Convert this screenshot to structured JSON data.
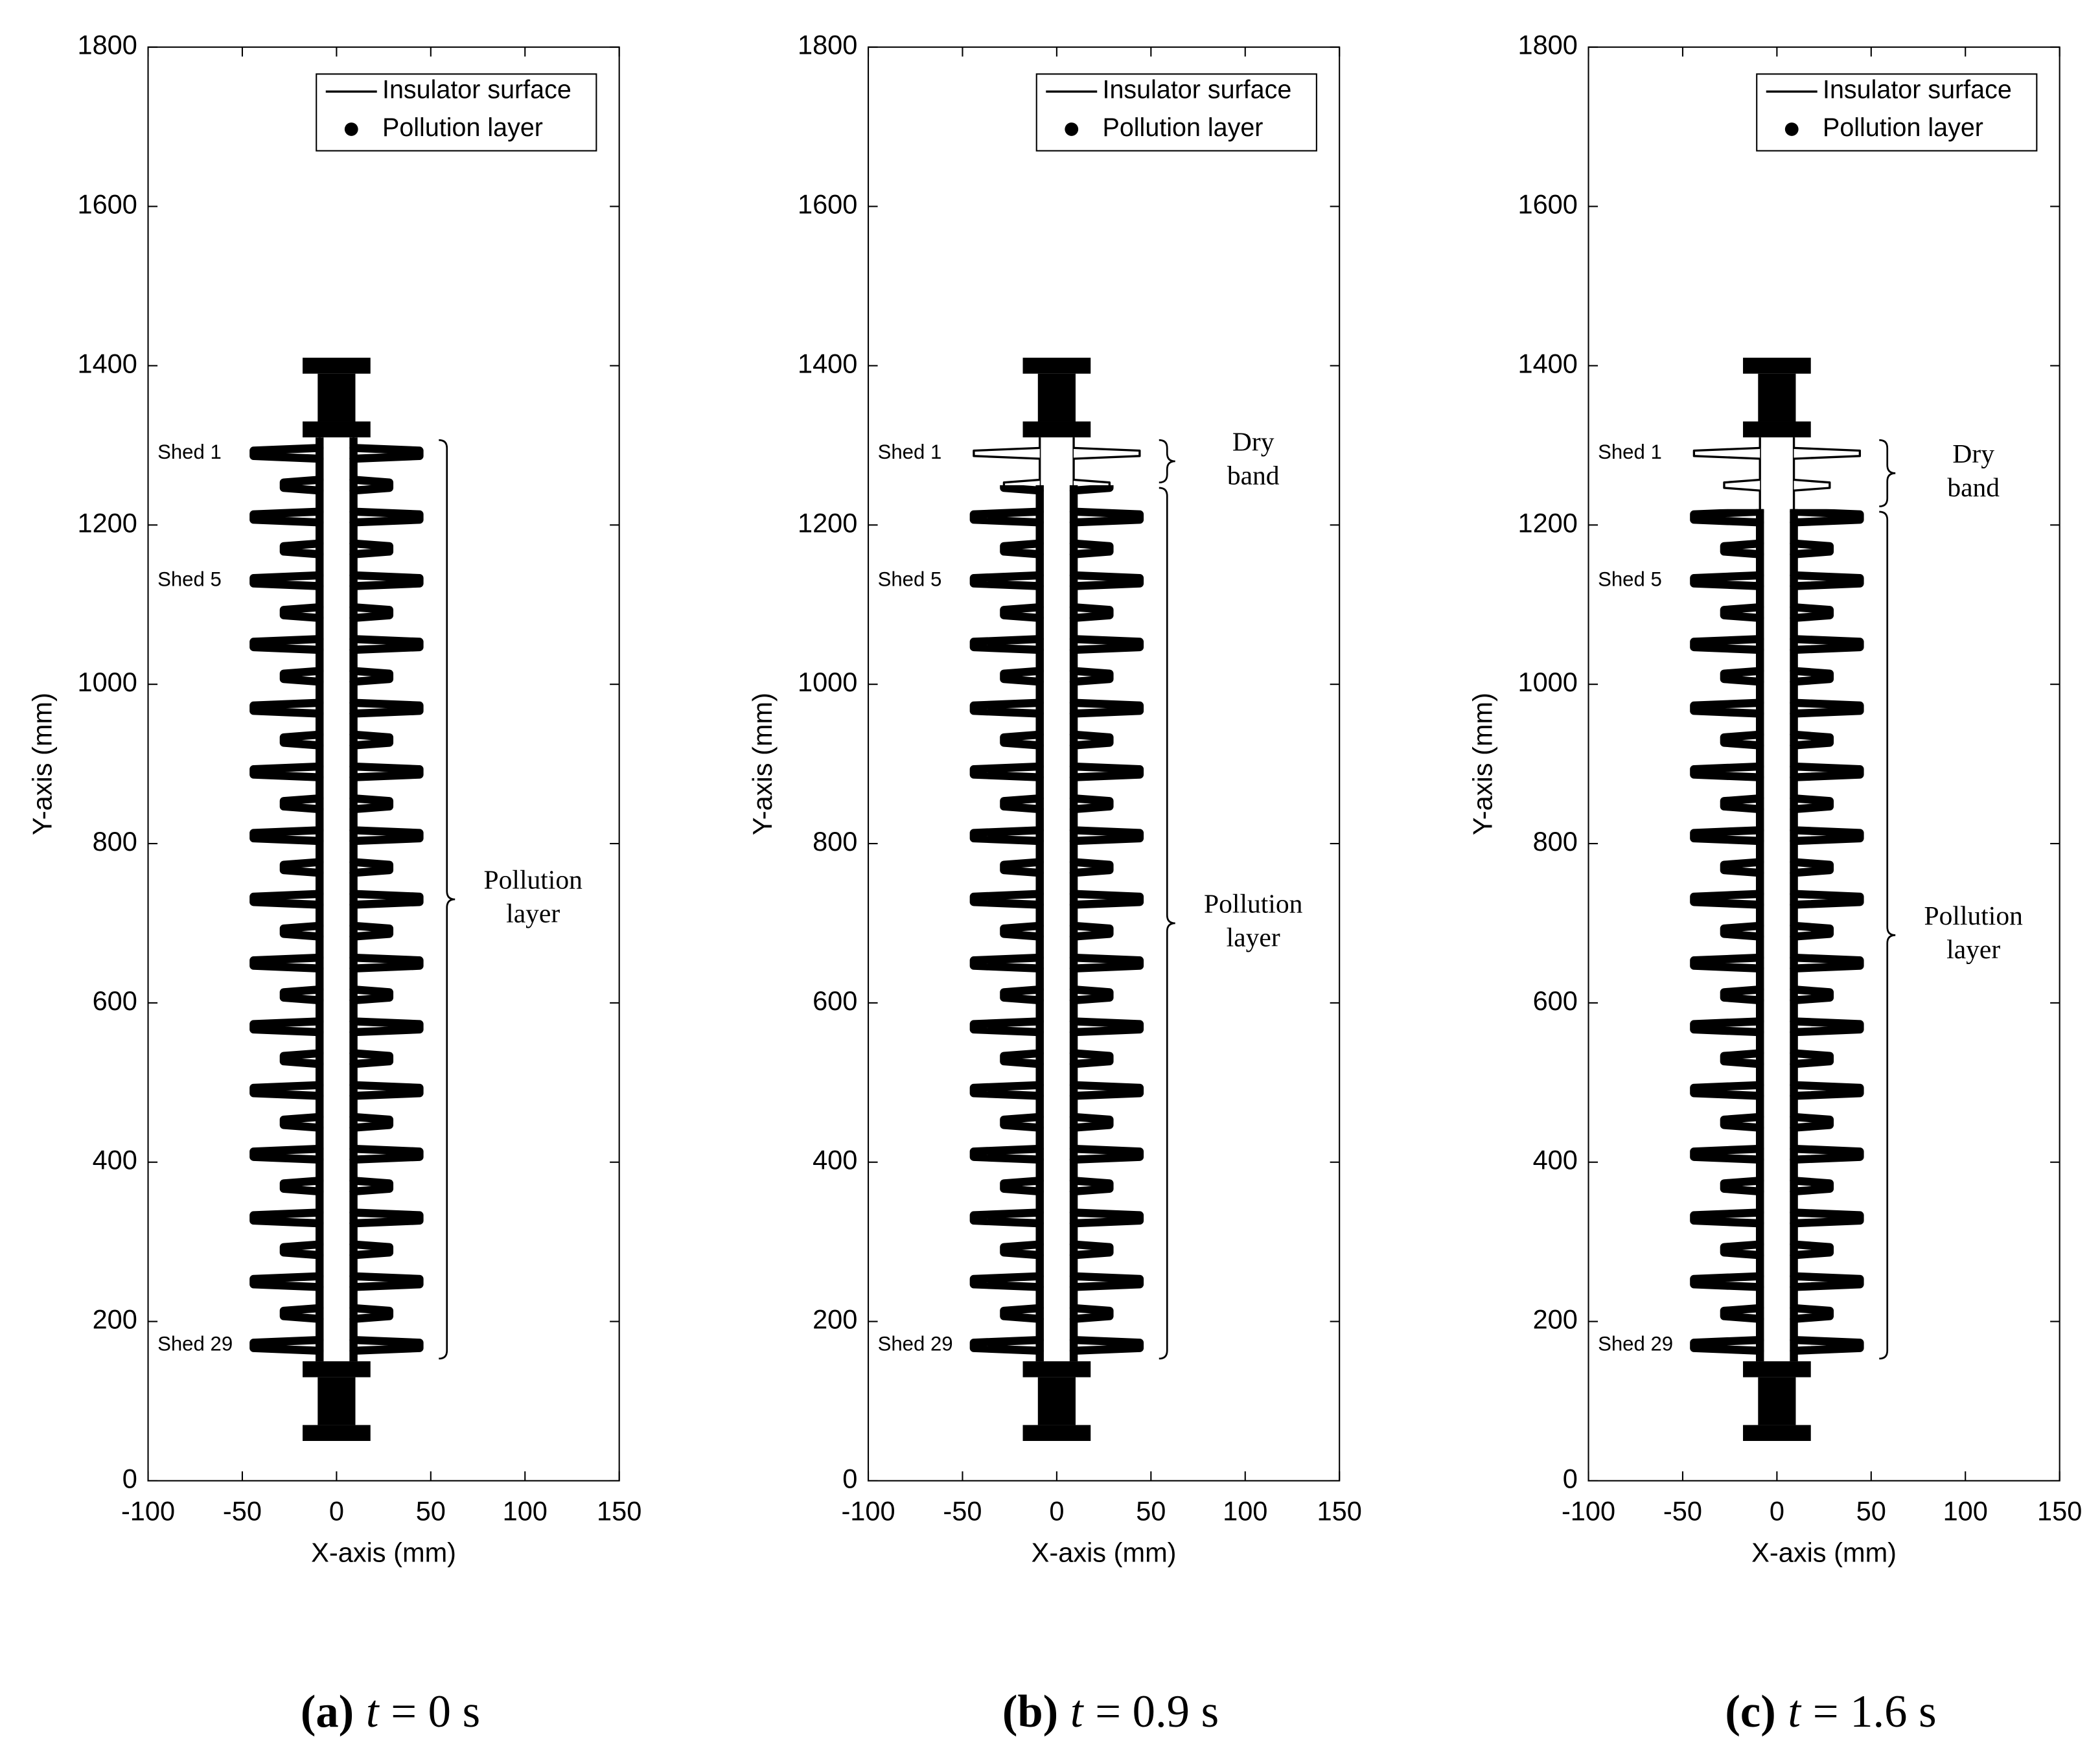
{
  "chart_data": [
    {
      "type": "profile",
      "xlabel": "X-axis (mm)",
      "ylabel": "Y-axis (mm)",
      "xlim": [
        -100,
        150
      ],
      "ylim": [
        0,
        1800
      ],
      "xticks": [
        -100,
        -50,
        0,
        50,
        100,
        150
      ],
      "yticks": [
        0,
        200,
        400,
        600,
        800,
        1000,
        1200,
        1400,
        1600,
        1800
      ],
      "grid": false,
      "legend": "upper right",
      "series": [
        {
          "name": "Insulator surface",
          "color": "#000000",
          "core_radius": 9,
          "sheds": {
            "y": [
              1290,
              1250,
              1210,
              1170,
              1130,
              1090,
              1050,
              1010,
              970,
              930,
              890,
              850,
              810,
              770,
              730,
              690,
              650,
              610,
              570,
              530,
              490,
              450,
              410,
              370,
              330,
              290,
              250,
              210,
              170
            ],
            "radius": [
              44,
              28,
              44,
              28,
              44,
              28,
              44,
              28,
              44,
              28,
              44,
              28,
              44,
              28,
              44,
              28,
              44,
              28,
              44,
              28,
              44,
              28,
              44,
              28,
              44,
              28,
              44,
              28,
              44
            ]
          },
          "end_fittings": [
            {
              "x": [
                -18,
                18
              ],
              "y": [
                1390,
                1410
              ]
            },
            {
              "x": [
                -10,
                10
              ],
              "y": [
                1330,
                1390
              ]
            },
            {
              "x": [
                -18,
                18
              ],
              "y": [
                1310,
                1330
              ]
            },
            {
              "x": [
                -18,
                18
              ],
              "y": [
                130,
                150
              ]
            },
            {
              "x": [
                -10,
                10
              ],
              "y": [
                70,
                130
              ]
            },
            {
              "x": [
                -18,
                18
              ],
              "y": [
                50,
                70
              ]
            }
          ]
        },
        {
          "name": "Pollution layer",
          "color": "#000000",
          "y_range": [
            150,
            1310
          ]
        }
      ],
      "annotations": [
        {
          "text": "Shed 1",
          "y": 1290
        },
        {
          "text": "Shed 5",
          "y": 1130
        },
        {
          "text": "Shed 29",
          "y": 170
        }
      ],
      "braces": [
        {
          "text": [
            "Pollution",
            "layer"
          ],
          "y": [
            150,
            1310
          ]
        }
      ],
      "caption": [
        "(a)",
        "t",
        "= 0 s"
      ]
    },
    {
      "type": "profile",
      "xlabel": "X-axis (mm)",
      "ylabel": "Y-axis (mm)",
      "xlim": [
        -100,
        150
      ],
      "ylim": [
        0,
        1800
      ],
      "xticks": [
        -100,
        -50,
        0,
        50,
        100,
        150
      ],
      "yticks": [
        0,
        200,
        400,
        600,
        800,
        1000,
        1200,
        1400,
        1600,
        1800
      ],
      "grid": false,
      "legend": "upper right",
      "series": [
        {
          "name": "Insulator surface",
          "color": "#000000",
          "core_radius": 9,
          "sheds": {
            "y": [
              1290,
              1250,
              1210,
              1170,
              1130,
              1090,
              1050,
              1010,
              970,
              930,
              890,
              850,
              810,
              770,
              730,
              690,
              650,
              610,
              570,
              530,
              490,
              450,
              410,
              370,
              330,
              290,
              250,
              210,
              170
            ],
            "radius": [
              44,
              28,
              44,
              28,
              44,
              28,
              44,
              28,
              44,
              28,
              44,
              28,
              44,
              28,
              44,
              28,
              44,
              28,
              44,
              28,
              44,
              28,
              44,
              28,
              44,
              28,
              44,
              28,
              44
            ]
          },
          "end_fittings": [
            {
              "x": [
                -18,
                18
              ],
              "y": [
                1390,
                1410
              ]
            },
            {
              "x": [
                -10,
                10
              ],
              "y": [
                1330,
                1390
              ]
            },
            {
              "x": [
                -18,
                18
              ],
              "y": [
                1310,
                1330
              ]
            },
            {
              "x": [
                -18,
                18
              ],
              "y": [
                130,
                150
              ]
            },
            {
              "x": [
                -10,
                10
              ],
              "y": [
                70,
                130
              ]
            },
            {
              "x": [
                -18,
                18
              ],
              "y": [
                50,
                70
              ]
            }
          ]
        },
        {
          "name": "Pollution layer",
          "color": "#000000",
          "y_range": [
            150,
            1250
          ]
        }
      ],
      "annotations": [
        {
          "text": "Shed 1",
          "y": 1290
        },
        {
          "text": "Shed 5",
          "y": 1130
        },
        {
          "text": "Shed 29",
          "y": 170
        }
      ],
      "braces": [
        {
          "text": [
            "Dry",
            "band"
          ],
          "y": [
            1250,
            1310
          ]
        },
        {
          "text": [
            "Pollution",
            "layer"
          ],
          "y": [
            150,
            1250
          ]
        }
      ],
      "caption": [
        "(b)",
        "t",
        "= 0.9 s"
      ]
    },
    {
      "type": "profile",
      "xlabel": "X-axis (mm)",
      "ylabel": "Y-axis (mm)",
      "xlim": [
        -100,
        150
      ],
      "ylim": [
        0,
        1800
      ],
      "xticks": [
        -100,
        -50,
        0,
        50,
        100,
        150
      ],
      "yticks": [
        0,
        200,
        400,
        600,
        800,
        1000,
        1200,
        1400,
        1600,
        1800
      ],
      "grid": false,
      "legend": "upper right",
      "series": [
        {
          "name": "Insulator surface",
          "color": "#000000",
          "core_radius": 9,
          "sheds": {
            "y": [
              1290,
              1250,
              1210,
              1170,
              1130,
              1090,
              1050,
              1010,
              970,
              930,
              890,
              850,
              810,
              770,
              730,
              690,
              650,
              610,
              570,
              530,
              490,
              450,
              410,
              370,
              330,
              290,
              250,
              210,
              170
            ],
            "radius": [
              44,
              28,
              44,
              28,
              44,
              28,
              44,
              28,
              44,
              28,
              44,
              28,
              44,
              28,
              44,
              28,
              44,
              28,
              44,
              28,
              44,
              28,
              44,
              28,
              44,
              28,
              44,
              28,
              44
            ]
          },
          "end_fittings": [
            {
              "x": [
                -18,
                18
              ],
              "y": [
                1390,
                1410
              ]
            },
            {
              "x": [
                -10,
                10
              ],
              "y": [
                1330,
                1390
              ]
            },
            {
              "x": [
                -18,
                18
              ],
              "y": [
                1310,
                1330
              ]
            },
            {
              "x": [
                -18,
                18
              ],
              "y": [
                130,
                150
              ]
            },
            {
              "x": [
                -10,
                10
              ],
              "y": [
                70,
                130
              ]
            },
            {
              "x": [
                -18,
                18
              ],
              "y": [
                50,
                70
              ]
            }
          ]
        },
        {
          "name": "Pollution layer",
          "color": "#000000",
          "y_range": [
            150,
            1220
          ]
        }
      ],
      "annotations": [
        {
          "text": "Shed 1",
          "y": 1290
        },
        {
          "text": "Shed 5",
          "y": 1130
        },
        {
          "text": "Shed 29",
          "y": 170
        }
      ],
      "braces": [
        {
          "text": [
            "Dry",
            "band"
          ],
          "y": [
            1220,
            1310
          ]
        },
        {
          "text": [
            "Pollution",
            "layer"
          ],
          "y": [
            150,
            1220
          ]
        }
      ],
      "caption": [
        "(c)",
        "t",
        "= 1.6 s"
      ]
    }
  ]
}
